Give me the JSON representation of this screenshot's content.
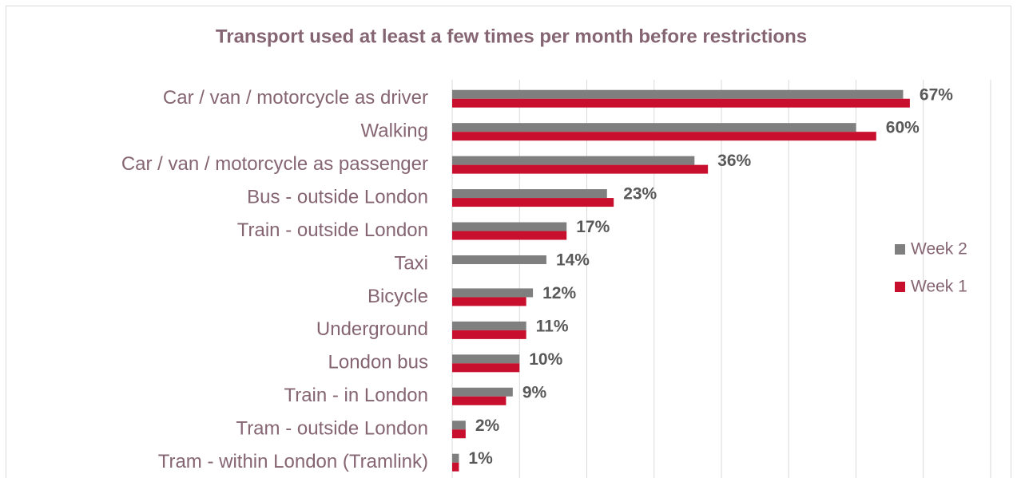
{
  "chart_data": {
    "type": "bar",
    "orientation": "horizontal",
    "title": "Transport used at least a few times per month before restrictions",
    "categories": [
      "Car / van / motorcycle as driver",
      "Walking",
      "Car / van / motorcycle as passenger",
      "Bus - outside London",
      "Train - outside London",
      "Taxi",
      "Bicycle",
      "Underground",
      "London bus",
      "Train - in London",
      "Tram - outside London",
      "Tram - within London (Tramlink)"
    ],
    "series": [
      {
        "name": "Week 2",
        "color": "#7f7f7f",
        "values": [
          67,
          60,
          36,
          23,
          17,
          14,
          12,
          11,
          10,
          9,
          2,
          1
        ],
        "value_labels": [
          "67%",
          "60%",
          "36%",
          "23%",
          "17%",
          "14%",
          "12%",
          "11%",
          "10%",
          "9%",
          "2%",
          "1%"
        ]
      },
      {
        "name": "Week 1",
        "color": "#c8102e",
        "values": [
          68,
          63,
          38,
          24,
          17,
          null,
          11,
          11,
          10,
          8,
          2,
          1
        ]
      }
    ],
    "xlim": [
      0,
      80
    ],
    "xticks": [
      0,
      10,
      20,
      30,
      40,
      50,
      60,
      70,
      80
    ],
    "grid": true,
    "legend": "right"
  }
}
